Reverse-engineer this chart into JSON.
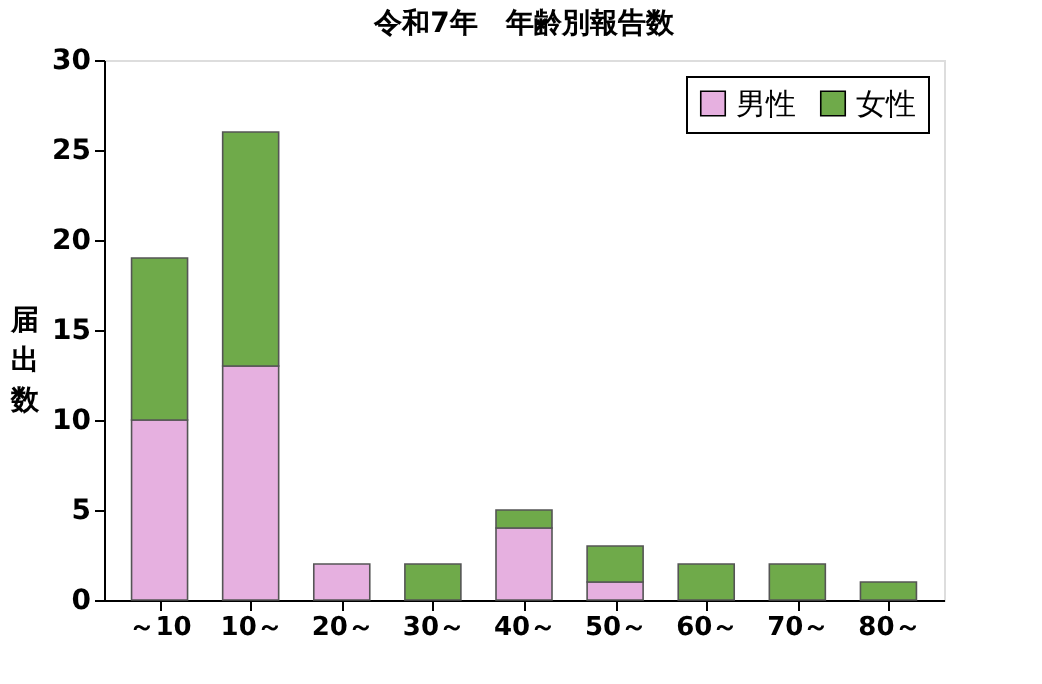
{
  "chart_data": {
    "type": "bar",
    "title": "令和7年　年齢別報告数",
    "ylabel": "届出数",
    "categories": [
      "～10",
      "10～",
      "20～",
      "30～",
      "40～",
      "50～",
      "60～",
      "70～",
      "80～"
    ],
    "stacked": true,
    "series": [
      {
        "name": "男性",
        "color": "#e6b0e0",
        "values": [
          10,
          13,
          2,
          0,
          4,
          1,
          0,
          0,
          0
        ]
      },
      {
        "name": "女性",
        "color": "#6faa4a",
        "values": [
          9,
          13,
          0,
          2,
          1,
          2,
          2,
          2,
          1
        ]
      }
    ],
    "ylim": [
      0,
      30
    ],
    "yticks": [
      0,
      5,
      10,
      15,
      20,
      25,
      30
    ],
    "grid": false,
    "legend": "top right"
  }
}
